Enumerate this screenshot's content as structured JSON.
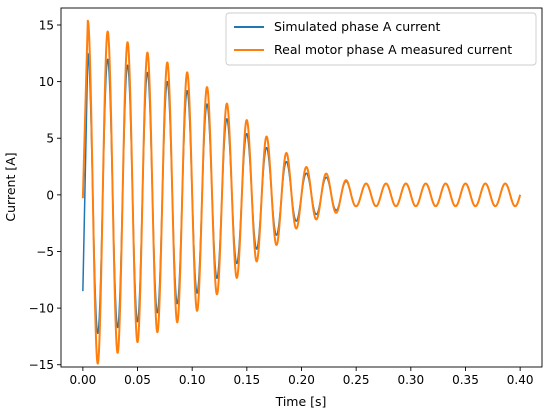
{
  "chart_data": {
    "type": "line",
    "title": "",
    "xlabel": "Time [s]",
    "ylabel": "Current [A]",
    "xlim": [
      -0.02,
      0.42
    ],
    "ylim": [
      -15.2,
      16.5
    ],
    "xticks": [
      0.0,
      0.05,
      0.1,
      0.15,
      0.2,
      0.25,
      0.3,
      0.35,
      0.4
    ],
    "xtick_labels": [
      "0.00",
      "0.05",
      "0.10",
      "0.15",
      "0.20",
      "0.25",
      "0.30",
      "0.35",
      "0.40"
    ],
    "yticks": [
      -15,
      -10,
      -5,
      0,
      5,
      10,
      15
    ],
    "ytick_labels": [
      "−15",
      "−10",
      "−5",
      "0",
      "5",
      "10",
      "15"
    ],
    "grid": false,
    "legend_position": "top-right",
    "oscillation_frequency_hz": 55,
    "series": [
      {
        "name": "Simulated phase A current",
        "color": "#1f77b4",
        "start_value": -8.5,
        "peak_envelope": [
          {
            "t": 0.004,
            "amp": 12.5
          },
          {
            "t": 0.05,
            "amp": 11.2
          },
          {
            "t": 0.1,
            "amp": 9.0
          },
          {
            "t": 0.15,
            "amp": 5.4
          },
          {
            "t": 0.2,
            "amp": 2.0
          },
          {
            "t": 0.25,
            "amp": 1.0
          },
          {
            "t": 0.3,
            "amp": 1.0
          },
          {
            "t": 0.4,
            "amp": 1.0
          }
        ]
      },
      {
        "name": "Real motor phase A measured current",
        "color": "#ff7f0e",
        "start_value": -0.3,
        "peak_envelope": [
          {
            "t": 0.004,
            "amp": 15.4
          },
          {
            "t": 0.05,
            "amp": 13.0
          },
          {
            "t": 0.1,
            "amp": 10.6
          },
          {
            "t": 0.15,
            "amp": 6.6
          },
          {
            "t": 0.2,
            "amp": 2.6
          },
          {
            "t": 0.25,
            "amp": 1.0
          },
          {
            "t": 0.3,
            "amp": 1.0
          },
          {
            "t": 0.4,
            "amp": 1.0
          }
        ]
      }
    ]
  }
}
